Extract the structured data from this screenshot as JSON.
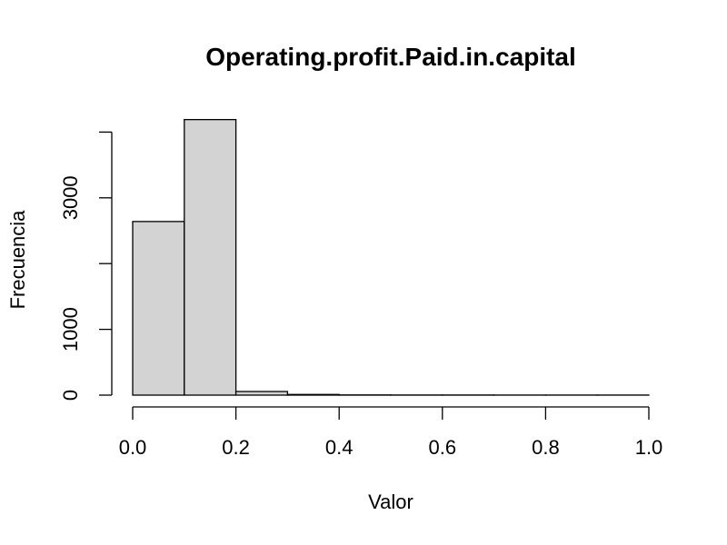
{
  "chart_data": {
    "type": "bar",
    "title": "Operating.profit.Paid.in.capital",
    "xlabel": "Valor",
    "ylabel": "Frecuencia",
    "bin_edges": [
      0.0,
      0.1,
      0.2,
      0.3,
      0.4,
      0.5,
      0.6,
      0.7,
      0.8,
      0.9,
      1.0
    ],
    "values": [
      2640,
      4190,
      55,
      10,
      3,
      2,
      2,
      1,
      1,
      1
    ],
    "xlim": [
      0.0,
      1.0
    ],
    "ylim": [
      0,
      4000
    ],
    "x_ticks": [
      0.0,
      0.2,
      0.4,
      0.6,
      0.8,
      1.0
    ],
    "x_tick_labels": [
      "0.0",
      "0.2",
      "0.4",
      "0.6",
      "0.8",
      "1.0"
    ],
    "y_ticks": [
      0,
      1000,
      2000,
      3000,
      4000
    ],
    "y_tick_labels": [
      "0",
      "1000",
      "",
      "3000",
      ""
    ],
    "grid": false,
    "colors": {
      "bar_fill": "#d3d3d3",
      "bar_stroke": "#000000"
    }
  }
}
